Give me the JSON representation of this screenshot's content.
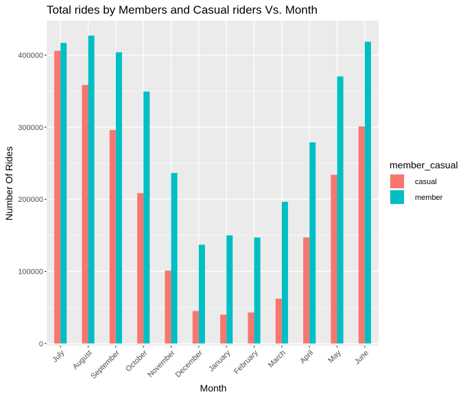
{
  "chart_data": {
    "type": "bar",
    "title": "Total rides by Members and Casual riders Vs. Month",
    "xlabel": "Month",
    "ylabel": "Number Of Rides",
    "categories": [
      "July",
      "August",
      "September",
      "October",
      "November",
      "December",
      "January",
      "February",
      "March",
      "April",
      "May",
      "June"
    ],
    "series": [
      {
        "name": "casual",
        "color": "#F8766D",
        "values": [
          406000,
          358500,
          296000,
          208500,
          101000,
          45000,
          40000,
          43000,
          62000,
          147000,
          234000,
          301000
        ]
      },
      {
        "name": "member",
        "color": "#00BFC4",
        "values": [
          417000,
          427000,
          404000,
          349500,
          236500,
          137000,
          150000,
          147000,
          196500,
          279000,
          370500,
          418500
        ]
      }
    ],
    "ylim": [
      -3000,
      448000
    ],
    "yticks": [
      0,
      100000,
      200000,
      300000,
      400000
    ],
    "ytick_labels": [
      "0",
      "100000",
      "200000",
      "300000",
      "400000"
    ],
    "grid": true,
    "panel_background": "#EBEBEB",
    "legend": {
      "title": "member_casual",
      "placement": "right"
    }
  }
}
